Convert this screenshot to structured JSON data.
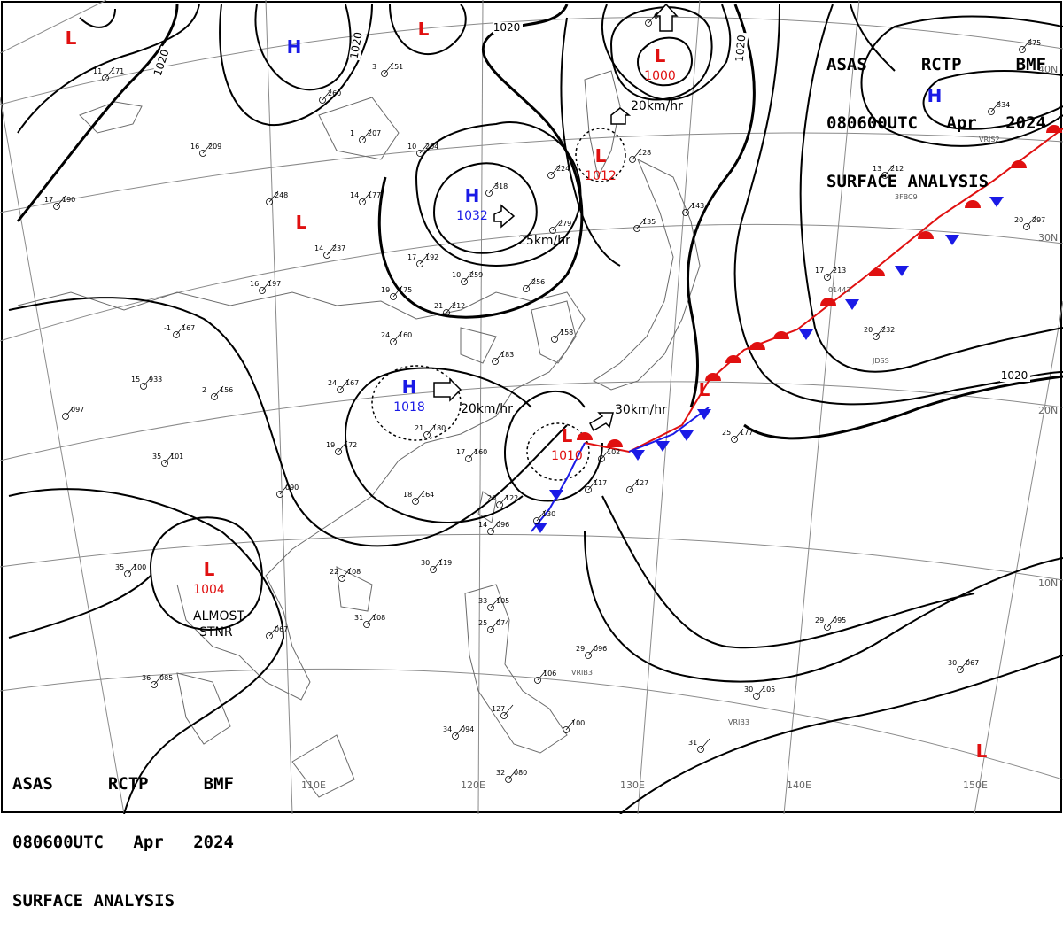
{
  "header_top": {
    "line1": [
      "ASAS",
      "RCTP",
      "BMF"
    ],
    "line2": [
      "080600UTC",
      "Apr",
      "2024"
    ],
    "line3": "SURFACE ANALYSIS"
  },
  "header_bottom": {
    "line1": [
      "ASAS",
      "RCTP",
      "BMF"
    ],
    "line2": [
      "080600UTC",
      "Apr",
      "2024"
    ],
    "line3": "SURFACE ANALYSIS"
  },
  "colors": {
    "high": "#1a1ae6",
    "low": "#e01010",
    "warm_front": "#e01010",
    "cold_front": "#1a1ae6",
    "isobar": "#000000",
    "grid": "#888888",
    "coast": "#555555"
  },
  "longitude_labels": [
    "110E",
    "120E",
    "130E",
    "140E",
    "150E"
  ],
  "latitude_labels": [
    "40N",
    "30N",
    "20N",
    "10N"
  ],
  "isobar_labels": [
    "1020",
    "1020",
    "1020",
    "1020",
    "1020"
  ],
  "pressure_centers": [
    {
      "type": "L",
      "value": ""
    },
    {
      "type": "H",
      "value": ""
    },
    {
      "type": "L",
      "value": ""
    },
    {
      "type": "L",
      "value": "1000"
    },
    {
      "type": "H",
      "value": ""
    },
    {
      "type": "H",
      "value": "1032"
    },
    {
      "type": "L",
      "value": "1012"
    },
    {
      "type": "L",
      "value": ""
    },
    {
      "type": "H",
      "value": "1018"
    },
    {
      "type": "L",
      "value": "1010"
    },
    {
      "type": "L",
      "value": ""
    },
    {
      "type": "L",
      "value": "1004"
    },
    {
      "type": "L",
      "value": ""
    }
  ],
  "motion_labels": [
    "20km/hr",
    "25km/hr",
    "20km/hr",
    "30km/hr"
  ],
  "annotations": [
    "ALMOST",
    "STNR"
  ],
  "station_plots": [
    {
      "id": "s1",
      "t": "11",
      "p": "171"
    },
    {
      "id": "s2",
      "t": "3",
      "p": "151"
    },
    {
      "id": "s3",
      "t": "",
      "p": "260"
    },
    {
      "id": "s4",
      "t": "16",
      "p": "209"
    },
    {
      "id": "s5",
      "t": "1",
      "p": "207"
    },
    {
      "id": "s6",
      "t": "10",
      "p": "204"
    },
    {
      "id": "s7",
      "t": "17",
      "p": "190"
    },
    {
      "id": "s8",
      "t": "",
      "p": "248"
    },
    {
      "id": "s9",
      "t": "14",
      "p": "177"
    },
    {
      "id": "s10",
      "t": "14",
      "p": "237"
    },
    {
      "id": "s11",
      "t": "",
      "p": "318"
    },
    {
      "id": "s12",
      "t": "",
      "p": "224"
    },
    {
      "id": "s13",
      "t": "",
      "p": "279"
    },
    {
      "id": "s14",
      "t": "16",
      "p": "197"
    },
    {
      "id": "s15",
      "t": "17",
      "p": "192"
    },
    {
      "id": "s16",
      "t": "19",
      "p": "175"
    },
    {
      "id": "s17",
      "t": "10",
      "p": "259"
    },
    {
      "id": "s18",
      "t": "",
      "p": "256"
    },
    {
      "id": "s19",
      "t": "21",
      "p": "212"
    },
    {
      "id": "s20",
      "t": "",
      "p": "128"
    },
    {
      "id": "s21",
      "t": "",
      "p": "135"
    },
    {
      "id": "s22",
      "t": "",
      "p": "143"
    },
    {
      "id": "s23",
      "t": "-1",
      "p": "167"
    },
    {
      "id": "s24",
      "t": "24",
      "p": "160"
    },
    {
      "id": "s25",
      "t": "",
      "p": "158"
    },
    {
      "id": "s26",
      "t": "",
      "p": "183"
    },
    {
      "id": "s27",
      "t": "15",
      "p": "933"
    },
    {
      "id": "s28",
      "t": "2",
      "p": "156"
    },
    {
      "id": "s29",
      "t": "24",
      "p": "167"
    },
    {
      "id": "s30",
      "t": "",
      "p": "097"
    },
    {
      "id": "s31",
      "t": "19",
      "p": "172"
    },
    {
      "id": "s32",
      "t": "21",
      "p": "180"
    },
    {
      "id": "s33",
      "t": "17",
      "p": "160"
    },
    {
      "id": "s34",
      "t": "35",
      "p": "101"
    },
    {
      "id": "s35",
      "t": "",
      "p": "090"
    },
    {
      "id": "s36",
      "t": "18",
      "p": "164"
    },
    {
      "id": "s37",
      "t": "20",
      "p": "122"
    },
    {
      "id": "s38",
      "t": "",
      "p": "130"
    },
    {
      "id": "s39",
      "t": "14",
      "p": "096"
    },
    {
      "id": "s40",
      "t": "",
      "p": "127"
    },
    {
      "id": "s41",
      "t": "",
      "p": "102"
    },
    {
      "id": "s42",
      "t": "",
      "p": "117"
    },
    {
      "id": "s43",
      "t": "30",
      "p": "119"
    },
    {
      "id": "s44",
      "t": "22",
      "p": "108"
    },
    {
      "id": "s45",
      "t": "33",
      "p": "105"
    },
    {
      "id": "s46",
      "t": "25",
      "p": "074"
    },
    {
      "id": "s47",
      "t": "31",
      "p": "108"
    },
    {
      "id": "s48",
      "t": "",
      "p": "067"
    },
    {
      "id": "s49",
      "t": "29",
      "p": "096"
    },
    {
      "id": "s50",
      "t": "",
      "p": "106"
    },
    {
      "id": "s51",
      "t": "36",
      "p": "085"
    },
    {
      "id": "s52",
      "t": "127",
      "p": ""
    },
    {
      "id": "s53",
      "t": "",
      "p": "100"
    },
    {
      "id": "s54",
      "t": "34",
      "p": "094"
    },
    {
      "id": "s55",
      "t": "32",
      "p": "080"
    },
    {
      "id": "s56",
      "t": "29",
      "p": "095"
    },
    {
      "id": "s57",
      "t": "30",
      "p": "105"
    },
    {
      "id": "s58",
      "t": "30",
      "p": "067"
    },
    {
      "id": "s59",
      "t": "31",
      "p": ""
    },
    {
      "id": "s60",
      "t": "35",
      "p": "100"
    },
    {
      "id": "s61",
      "t": "17",
      "p": "213"
    },
    {
      "id": "s62",
      "t": "20",
      "p": "232"
    },
    {
      "id": "s63",
      "t": "13",
      "p": "212"
    },
    {
      "id": "s64",
      "t": "20",
      "p": "297"
    },
    {
      "id": "s65",
      "t": "25",
      "p": "177"
    },
    {
      "id": "s66",
      "t": "",
      "p": "334"
    },
    {
      "id": "s67",
      "t": "",
      "p": "375"
    },
    {
      "id": "s68",
      "t": "",
      "p": "092"
    }
  ],
  "ship_ids": [
    "JDSS",
    "3FBC9",
    "VRJS2",
    "VRIB3",
    "VRIB3",
    "01442"
  ]
}
